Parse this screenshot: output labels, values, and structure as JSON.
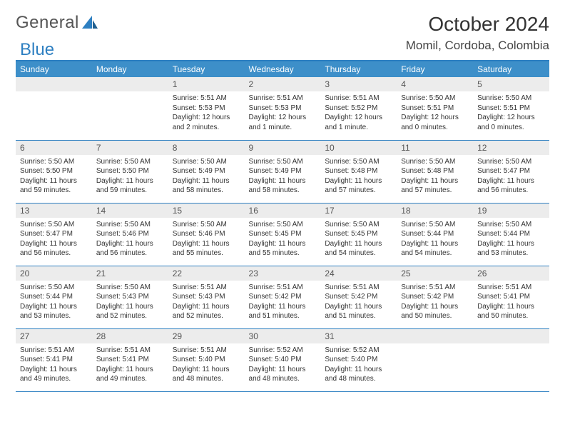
{
  "brand": {
    "word1": "General",
    "word2": "Blue"
  },
  "title": "October 2024",
  "location": "Momil, Cordoba, Colombia",
  "colors": {
    "header_bg": "#3d8fc9",
    "header_text": "#ffffff",
    "rule": "#2d7fc1",
    "daynum_bg": "#ececec",
    "text": "#333333",
    "logo_gray": "#555555",
    "logo_blue": "#2d7fc1"
  },
  "day_headers": [
    "Sunday",
    "Monday",
    "Tuesday",
    "Wednesday",
    "Thursday",
    "Friday",
    "Saturday"
  ],
  "layout": {
    "first_weekday_index": 2,
    "days_in_month": 31
  },
  "fonts": {
    "title_pt": 28,
    "location_pt": 17,
    "header_pt": 12,
    "daynum_pt": 12,
    "body_pt": 10
  },
  "days": {
    "1": {
      "sunrise": "5:51 AM",
      "sunset": "5:53 PM",
      "daylight": "12 hours and 2 minutes."
    },
    "2": {
      "sunrise": "5:51 AM",
      "sunset": "5:53 PM",
      "daylight": "12 hours and 1 minute."
    },
    "3": {
      "sunrise": "5:51 AM",
      "sunset": "5:52 PM",
      "daylight": "12 hours and 1 minute."
    },
    "4": {
      "sunrise": "5:50 AM",
      "sunset": "5:51 PM",
      "daylight": "12 hours and 0 minutes."
    },
    "5": {
      "sunrise": "5:50 AM",
      "sunset": "5:51 PM",
      "daylight": "12 hours and 0 minutes."
    },
    "6": {
      "sunrise": "5:50 AM",
      "sunset": "5:50 PM",
      "daylight": "11 hours and 59 minutes."
    },
    "7": {
      "sunrise": "5:50 AM",
      "sunset": "5:50 PM",
      "daylight": "11 hours and 59 minutes."
    },
    "8": {
      "sunrise": "5:50 AM",
      "sunset": "5:49 PM",
      "daylight": "11 hours and 58 minutes."
    },
    "9": {
      "sunrise": "5:50 AM",
      "sunset": "5:49 PM",
      "daylight": "11 hours and 58 minutes."
    },
    "10": {
      "sunrise": "5:50 AM",
      "sunset": "5:48 PM",
      "daylight": "11 hours and 57 minutes."
    },
    "11": {
      "sunrise": "5:50 AM",
      "sunset": "5:48 PM",
      "daylight": "11 hours and 57 minutes."
    },
    "12": {
      "sunrise": "5:50 AM",
      "sunset": "5:47 PM",
      "daylight": "11 hours and 56 minutes."
    },
    "13": {
      "sunrise": "5:50 AM",
      "sunset": "5:47 PM",
      "daylight": "11 hours and 56 minutes."
    },
    "14": {
      "sunrise": "5:50 AM",
      "sunset": "5:46 PM",
      "daylight": "11 hours and 56 minutes."
    },
    "15": {
      "sunrise": "5:50 AM",
      "sunset": "5:46 PM",
      "daylight": "11 hours and 55 minutes."
    },
    "16": {
      "sunrise": "5:50 AM",
      "sunset": "5:45 PM",
      "daylight": "11 hours and 55 minutes."
    },
    "17": {
      "sunrise": "5:50 AM",
      "sunset": "5:45 PM",
      "daylight": "11 hours and 54 minutes."
    },
    "18": {
      "sunrise": "5:50 AM",
      "sunset": "5:44 PM",
      "daylight": "11 hours and 54 minutes."
    },
    "19": {
      "sunrise": "5:50 AM",
      "sunset": "5:44 PM",
      "daylight": "11 hours and 53 minutes."
    },
    "20": {
      "sunrise": "5:50 AM",
      "sunset": "5:44 PM",
      "daylight": "11 hours and 53 minutes."
    },
    "21": {
      "sunrise": "5:50 AM",
      "sunset": "5:43 PM",
      "daylight": "11 hours and 52 minutes."
    },
    "22": {
      "sunrise": "5:51 AM",
      "sunset": "5:43 PM",
      "daylight": "11 hours and 52 minutes."
    },
    "23": {
      "sunrise": "5:51 AM",
      "sunset": "5:42 PM",
      "daylight": "11 hours and 51 minutes."
    },
    "24": {
      "sunrise": "5:51 AM",
      "sunset": "5:42 PM",
      "daylight": "11 hours and 51 minutes."
    },
    "25": {
      "sunrise": "5:51 AM",
      "sunset": "5:42 PM",
      "daylight": "11 hours and 50 minutes."
    },
    "26": {
      "sunrise": "5:51 AM",
      "sunset": "5:41 PM",
      "daylight": "11 hours and 50 minutes."
    },
    "27": {
      "sunrise": "5:51 AM",
      "sunset": "5:41 PM",
      "daylight": "11 hours and 49 minutes."
    },
    "28": {
      "sunrise": "5:51 AM",
      "sunset": "5:41 PM",
      "daylight": "11 hours and 49 minutes."
    },
    "29": {
      "sunrise": "5:51 AM",
      "sunset": "5:40 PM",
      "daylight": "11 hours and 48 minutes."
    },
    "30": {
      "sunrise": "5:52 AM",
      "sunset": "5:40 PM",
      "daylight": "11 hours and 48 minutes."
    },
    "31": {
      "sunrise": "5:52 AM",
      "sunset": "5:40 PM",
      "daylight": "11 hours and 48 minutes."
    }
  },
  "labels": {
    "sunrise": "Sunrise: ",
    "sunset": "Sunset: ",
    "daylight": "Daylight: "
  }
}
